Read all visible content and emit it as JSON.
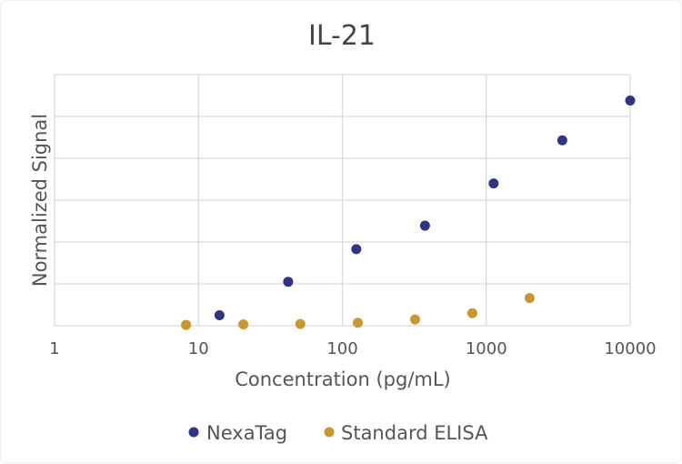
{
  "chart_data": {
    "type": "scatter",
    "title": "IL-21",
    "xlabel": "Concentration (pg/mL)",
    "ylabel": "Normalized Signal",
    "x_scale": "log",
    "xlim": [
      1,
      10000
    ],
    "x_ticks": [
      "1",
      "10",
      "100",
      "1000",
      "10000"
    ],
    "ylim": [
      0,
      6
    ],
    "y_tick_labels_shown": false,
    "grid": true,
    "legend_position": "bottom",
    "series": [
      {
        "name": "NexaTag",
        "color": "#2e3584",
        "x": [
          14,
          42,
          125,
          375,
          1125,
          3375,
          10000
        ],
        "y": [
          0.25,
          1.05,
          1.83,
          2.39,
          3.4,
          4.43,
          5.38
        ]
      },
      {
        "name": "Standard ELISA",
        "color": "#c9962f",
        "x": [
          8.2,
          20.5,
          51,
          128,
          320,
          800,
          2000
        ],
        "y": [
          0.02,
          0.03,
          0.04,
          0.07,
          0.15,
          0.3,
          0.66
        ]
      }
    ]
  }
}
